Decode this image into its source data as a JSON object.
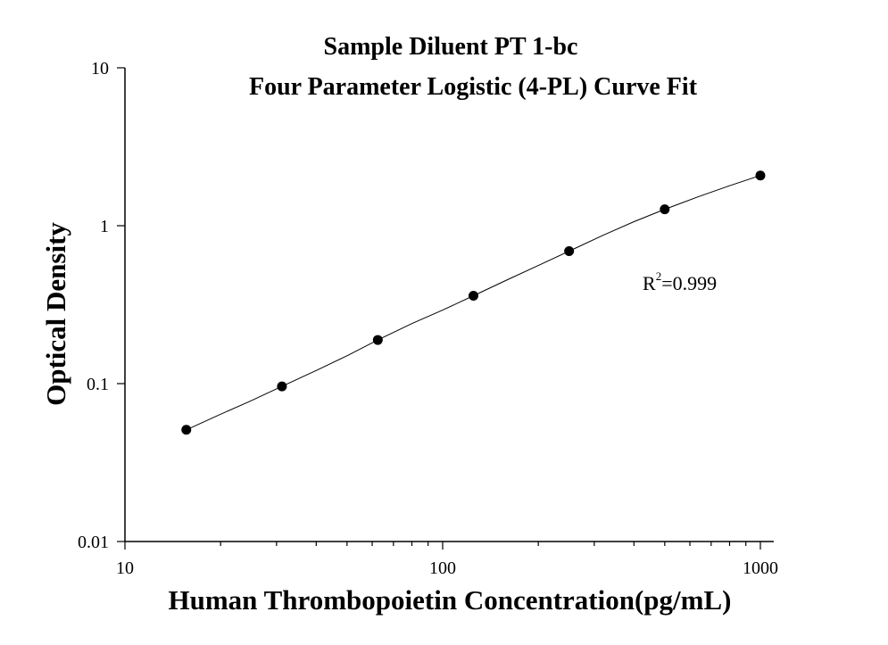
{
  "chart_data": {
    "type": "scatter",
    "title": "Sample Diluent PT 1-bc",
    "subtitle": "Four Parameter Logistic (4-PL) Curve Fit",
    "xlabel": "Human Thrombopoietin Concentration(pg/mL)",
    "ylabel": "Optical Density",
    "x_scale": "log",
    "y_scale": "log",
    "xlim": [
      10,
      1000
    ],
    "ylim": [
      0.01,
      10
    ],
    "x_ticks": [
      "10",
      "100",
      "1000"
    ],
    "y_ticks": [
      "0.01",
      "0.1",
      "1",
      "10"
    ],
    "grid": false,
    "series": [
      {
        "x": [
          15.6,
          31.2,
          62.5,
          125,
          250,
          500,
          1000
        ],
        "values": [
          0.051,
          0.096,
          0.189,
          0.36,
          0.69,
          1.27,
          2.08
        ]
      }
    ],
    "fit_curve": {
      "model": "4-PL",
      "x": [
        15.6,
        20,
        25,
        31.2,
        40,
        50,
        62.5,
        80,
        100,
        125,
        160,
        200,
        250,
        320,
        400,
        500,
        640,
        800,
        1000
      ],
      "values": [
        0.051,
        0.064,
        0.078,
        0.096,
        0.121,
        0.15,
        0.189,
        0.24,
        0.292,
        0.36,
        0.455,
        0.56,
        0.69,
        0.87,
        1.06,
        1.27,
        1.53,
        1.79,
        2.08
      ]
    },
    "annotation": {
      "r_label": "R",
      "r_exponent": "2",
      "r_value": "=0.999"
    }
  }
}
